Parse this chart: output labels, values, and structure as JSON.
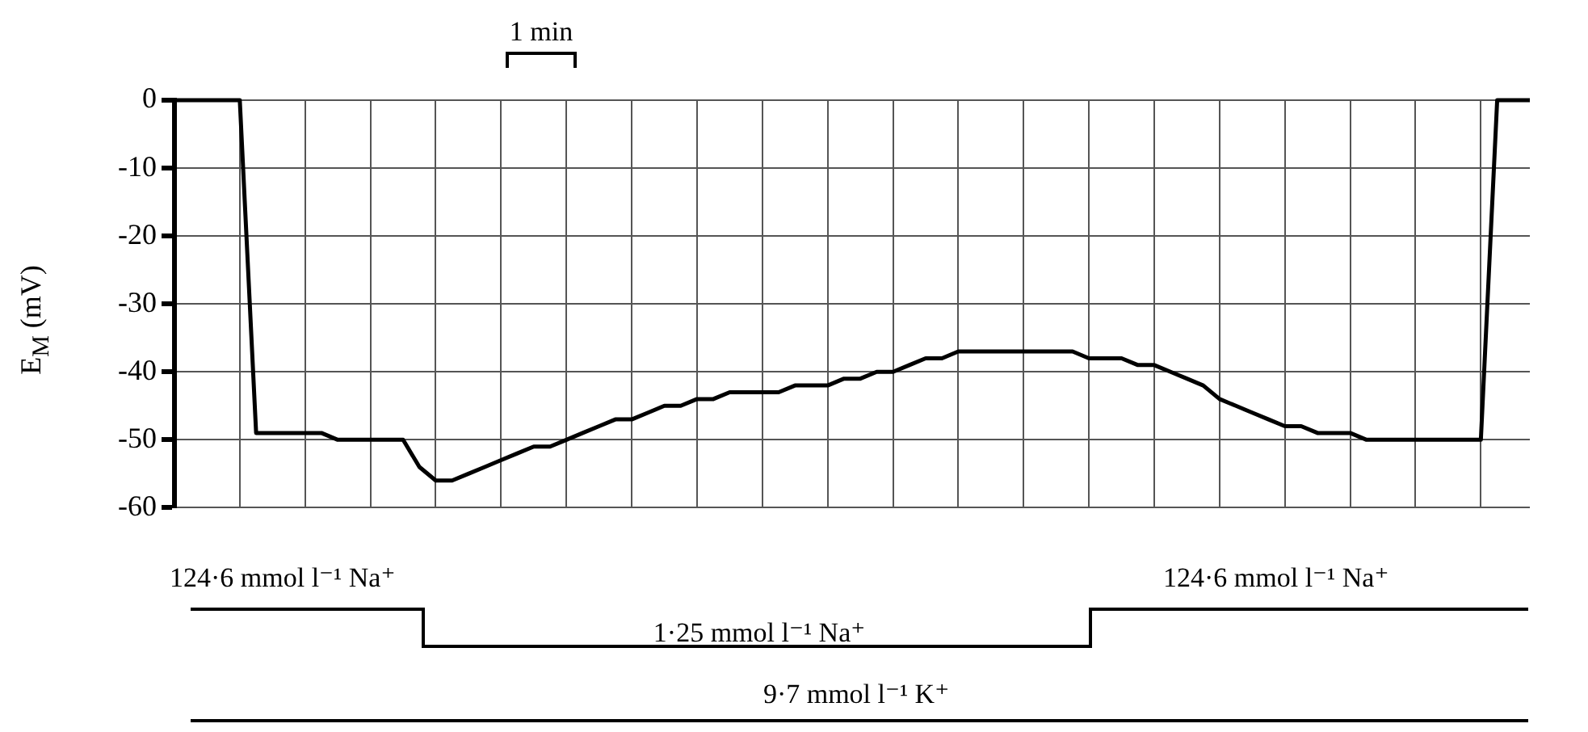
{
  "chart_data": {
    "type": "line",
    "ylabel": "E$_{M}$ (mV)",
    "annotations": [
      "1 min",
      "124·6 mmol l⁻¹ Na⁺",
      "1·25 mmol l⁻¹ Na⁺",
      "124·6 mmol l⁻¹ Na⁺",
      "9·7 mmol l⁻¹ K⁺"
    ],
    "categories": [
      null,
      null,
      null,
      null,
      null,
      null,
      null,
      null,
      null,
      null,
      null,
      null,
      null,
      null,
      null,
      null,
      null,
      null,
      null,
      null,
      null,
      null,
      null,
      null,
      null,
      null,
      null,
      null,
      null,
      null,
      null,
      null,
      null,
      null,
      null,
      null,
      null,
      null,
      null,
      null,
      null,
      null,
      null,
      null,
      null,
      null,
      null,
      null,
      null,
      null,
      null,
      null,
      null,
      null,
      null,
      null,
      null,
      null,
      null,
      null,
      null,
      null,
      null,
      null,
      null,
      null,
      null,
      null,
      null,
      null,
      null,
      null,
      null,
      null,
      null,
      null,
      null,
      null,
      null,
      null,
      null,
      null,
      null,
      null
    ],
    "series": [
      {
        "color": "#000000",
        "values": [
          0,
          0,
          0,
          0,
          0,
          -49,
          -49,
          -49,
          -49,
          -49,
          -50,
          -50,
          -50,
          -50,
          -50,
          -54,
          -56,
          -56,
          -55,
          -54,
          -53,
          -52,
          -51,
          -51,
          -50,
          -49,
          -48,
          -47,
          -47,
          -46,
          -45,
          -45,
          -44,
          -44,
          -43,
          -43,
          -43,
          -43,
          -42,
          -42,
          -42,
          -41,
          -41,
          -40,
          -40,
          -39,
          -38,
          -38,
          -37,
          -37,
          -37,
          -37,
          -37,
          -37,
          -37,
          -37,
          -38,
          -38,
          -38,
          -39,
          -39,
          -40,
          -41,
          -42,
          -44,
          -45,
          -46,
          -47,
          -48,
          -48,
          -49,
          -49,
          -49,
          -50,
          -50,
          -50,
          -50,
          -50,
          -50,
          -50,
          -50,
          0,
          0,
          0
        ]
      }
    ],
    "ylim": [
      -60,
      0
    ],
    "yticks": [
      0,
      -10,
      -20,
      -30,
      -40,
      -50,
      -60
    ],
    "grid": true,
    "tick_labels": "y",
    "marker": "none",
    "line_style": "solid"
  }
}
